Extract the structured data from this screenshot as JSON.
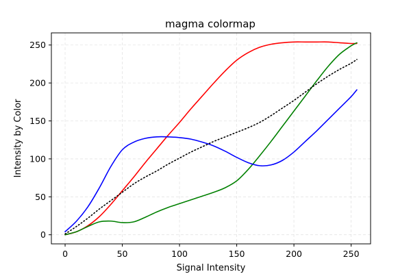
{
  "chart_data": {
    "type": "line",
    "title": "magma colormap",
    "xlabel": "Signal Intensity",
    "ylabel": "Intensity by Color",
    "xlim": [
      -12,
      267
    ],
    "ylim": [
      -12,
      266
    ],
    "xticks": [
      0,
      50,
      100,
      150,
      200,
      250
    ],
    "yticks": [
      0,
      50,
      100,
      150,
      200,
      250
    ],
    "grid": true,
    "x": [
      0,
      10,
      20,
      30,
      40,
      50,
      60,
      70,
      80,
      90,
      100,
      110,
      120,
      130,
      140,
      150,
      160,
      170,
      180,
      190,
      200,
      210,
      220,
      230,
      240,
      250,
      255
    ],
    "series": [
      {
        "color": "#ff0000",
        "style": "solid",
        "values": [
          0,
          4,
          12,
          24,
          40,
          58,
          76,
          95,
          113,
          131,
          148,
          166,
          183,
          200,
          216,
          230,
          240,
          247,
          251,
          253,
          254,
          254,
          254,
          254,
          253,
          252,
          252
        ]
      },
      {
        "color": "#008000",
        "style": "solid",
        "values": [
          0,
          4,
          11,
          17,
          18,
          16,
          17,
          23,
          30,
          36,
          41,
          46,
          51,
          56,
          62,
          71,
          86,
          104,
          123,
          143,
          163,
          183,
          203,
          222,
          238,
          249,
          253
        ]
      },
      {
        "color": "#0000ff",
        "style": "solid",
        "values": [
          4,
          18,
          37,
          62,
          90,
          112,
          122,
          127,
          129,
          129,
          128,
          126,
          122,
          117,
          110,
          102,
          95,
          91,
          92,
          98,
          109,
          123,
          137,
          152,
          167,
          182,
          191
        ]
      },
      {
        "color": "#000000",
        "style": "dotted",
        "values": [
          1,
          11,
          22,
          34,
          45,
          56,
          67,
          76,
          84,
          93,
          101,
          109,
          116,
          123,
          129,
          135,
          141,
          148,
          157,
          167,
          177,
          188,
          199,
          209,
          218,
          226,
          231
        ]
      }
    ]
  }
}
